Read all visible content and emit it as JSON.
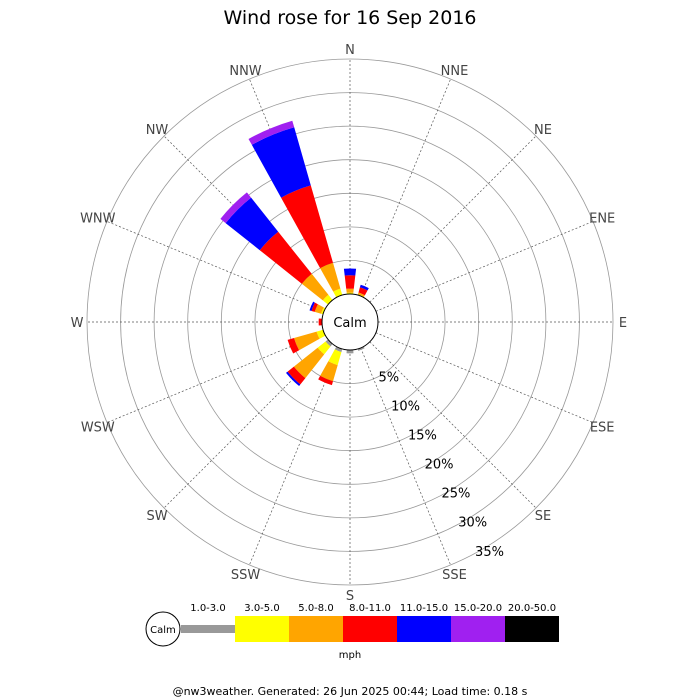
{
  "chart_data": {
    "type": "wind-rose",
    "title": "Wind rose for 16 Sep 2016",
    "directions": [
      "N",
      "NNE",
      "NE",
      "ENE",
      "E",
      "ESE",
      "SE",
      "SSE",
      "S",
      "SSW",
      "SW",
      "WSW",
      "W",
      "WNW",
      "NW",
      "NNW"
    ],
    "ring_labels": [
      "5%",
      "10%",
      "15%",
      "20%",
      "25%",
      "30%",
      "35%"
    ],
    "ring_values": [
      5,
      10,
      15,
      20,
      25,
      30,
      35
    ],
    "r_max_percent": 35,
    "calm_label": "Calm",
    "speed_bins": [
      {
        "label": "1.0-3.0",
        "color": "#999999"
      },
      {
        "label": "3.0-5.0",
        "color": "#ffff00"
      },
      {
        "label": "5.0-8.0",
        "color": "#ffa500"
      },
      {
        "label": "8.0-11.0",
        "color": "#ff0000"
      },
      {
        "label": "11.0-15.0",
        "color": "#0000ff"
      },
      {
        "label": "15.0-20.0",
        "color": "#a020f0"
      },
      {
        "label": "20.0-50.0",
        "color": "#000000"
      }
    ],
    "units": "mph",
    "frequencies_percent": {
      "N": [
        0.0,
        0.2,
        0.6,
        2.0,
        1.0,
        0.0,
        0.0
      ],
      "NNE": [
        0.0,
        0.1,
        0.3,
        0.8,
        0.4,
        0.0,
        0.0
      ],
      "NE": [
        0,
        0,
        0,
        0,
        0,
        0,
        0
      ],
      "ENE": [
        0,
        0,
        0,
        0,
        0,
        0,
        0
      ],
      "E": [
        0,
        0,
        0,
        0,
        0,
        0,
        0
      ],
      "ESE": [
        0,
        0,
        0,
        0,
        0,
        0,
        0
      ],
      "SE": [
        0,
        0,
        0,
        0,
        0,
        0,
        0
      ],
      "SSE": [
        0.3,
        0.0,
        0.0,
        0.0,
        0.0,
        0.0,
        0.0
      ],
      "S": [
        0.5,
        0.0,
        0.0,
        0.0,
        0.0,
        0.0,
        0.0
      ],
      "SSW": [
        0.5,
        2.0,
        2.5,
        0.6,
        0.0,
        0.0,
        0.0
      ],
      "SW": [
        0.5,
        1.5,
        4.5,
        1.2,
        0.3,
        0.0,
        0.0
      ],
      "WSW": [
        0.0,
        1.0,
        3.5,
        1.0,
        0.0,
        0.0,
        0.0
      ],
      "W": [
        0.0,
        0.0,
        0.0,
        0.5,
        0.0,
        0.0,
        0.0
      ],
      "WNW": [
        0.0,
        0.3,
        1.0,
        0.5,
        0.3,
        0.0,
        0.0
      ],
      "NW": [
        0.0,
        1.0,
        4.0,
        8.0,
        6.5,
        1.0,
        0.0
      ],
      "NNW": [
        0.0,
        1.0,
        4.0,
        12.0,
        9.0,
        1.0,
        0.0
      ]
    }
  },
  "footer": "@nw3weather. Generated: 26 Jun 2025 00:44; Load time: 0.18 s"
}
